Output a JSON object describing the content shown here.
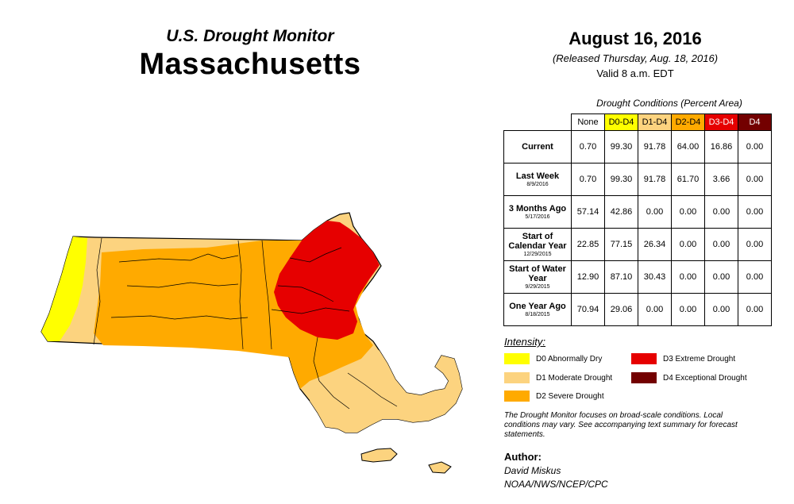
{
  "header": {
    "supertitle": "U.S. Drought Monitor",
    "state": "Massachusetts"
  },
  "date": {
    "main": "August 16, 2016",
    "released": "(Released Thursday, Aug. 18, 2016)",
    "valid": "Valid 8 a.m. EDT"
  },
  "table": {
    "caption": "Drought Conditions (Percent Area)",
    "columns": [
      "None",
      "D0-D4",
      "D1-D4",
      "D2-D4",
      "D3-D4",
      "D4"
    ],
    "rows": [
      {
        "label": "Current",
        "date": "",
        "values": [
          "0.70",
          "99.30",
          "91.78",
          "64.00",
          "16.86",
          "0.00"
        ]
      },
      {
        "label": "Last Week",
        "date": "8/9/2016",
        "values": [
          "0.70",
          "99.30",
          "91.78",
          "61.70",
          "3.66",
          "0.00"
        ]
      },
      {
        "label": "3 Months Ago",
        "date": "5/17/2016",
        "values": [
          "57.14",
          "42.86",
          "0.00",
          "0.00",
          "0.00",
          "0.00"
        ]
      },
      {
        "label": "Start of Calendar Year",
        "date": "12/29/2015",
        "values": [
          "22.85",
          "77.15",
          "26.34",
          "0.00",
          "0.00",
          "0.00"
        ]
      },
      {
        "label": "Start of Water Year",
        "date": "9/29/2015",
        "values": [
          "12.90",
          "87.10",
          "30.43",
          "0.00",
          "0.00",
          "0.00"
        ]
      },
      {
        "label": "One Year Ago",
        "date": "8/18/2015",
        "values": [
          "70.94",
          "29.06",
          "0.00",
          "0.00",
          "0.00",
          "0.00"
        ]
      }
    ]
  },
  "legend": {
    "title": "Intensity:",
    "items": [
      {
        "label": "D0 Abnormally Dry",
        "color": "#ffff00"
      },
      {
        "label": "D1 Moderate Drought",
        "color": "#fcd37f"
      },
      {
        "label": "D2 Severe Drought",
        "color": "#ffaa00"
      },
      {
        "label": "D3 Extreme Drought",
        "color": "#e60000"
      },
      {
        "label": "D4 Exceptional Drought",
        "color": "#730000"
      }
    ]
  },
  "note": "The Drought Monitor focuses on broad-scale conditions. Local conditions may vary. See accompanying text summary for forecast statements.",
  "author": {
    "label": "Author:",
    "name": "David Miskus",
    "org": "NOAA/NWS/NCEP/CPC"
  },
  "colors": {
    "d0": "#ffff00",
    "d1": "#fcd37f",
    "d2": "#ffaa00",
    "d3": "#e60000",
    "d4": "#730000",
    "border": "#000000"
  }
}
